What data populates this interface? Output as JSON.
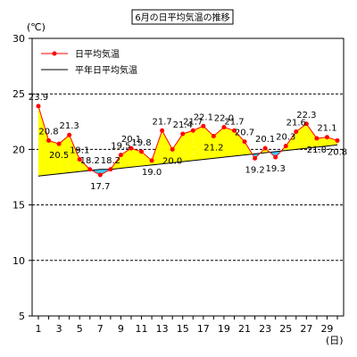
{
  "chart_data": {
    "type": "line",
    "title": "6月の日平均気温の推移",
    "ylabel": "(℃)",
    "xlabel": "(日)",
    "ylim": [
      5,
      30
    ],
    "yticks": [
      5,
      10,
      15,
      20,
      25,
      30
    ],
    "xlim": [
      1,
      30
    ],
    "xticks": [
      1,
      3,
      5,
      7,
      9,
      11,
      13,
      15,
      17,
      19,
      21,
      23,
      25,
      27,
      29
    ],
    "grid": "horizontal dashed",
    "legend_position": "top-left",
    "x": [
      1,
      2,
      3,
      4,
      5,
      6,
      7,
      8,
      9,
      10,
      11,
      12,
      13,
      14,
      15,
      16,
      17,
      18,
      19,
      20,
      21,
      22,
      23,
      24,
      25,
      26,
      27,
      28,
      29,
      30
    ],
    "series": [
      {
        "name": "日平均気温",
        "color": "#ff0000",
        "values": [
          23.9,
          20.8,
          20.5,
          21.3,
          19.1,
          18.2,
          17.7,
          18.2,
          19.5,
          20.1,
          19.8,
          19.0,
          21.7,
          20.0,
          21.4,
          21.7,
          22.1,
          21.2,
          22.0,
          21.7,
          20.7,
          19.2,
          20.1,
          19.3,
          20.3,
          21.6,
          22.3,
          21.0,
          21.1,
          20.8
        ]
      },
      {
        "name": "平年日平均気温",
        "color": "#000000",
        "values": [
          17.6,
          17.7,
          17.8,
          17.9,
          18.0,
          18.1,
          18.2,
          18.2,
          18.3,
          18.4,
          18.5,
          18.6,
          18.7,
          18.8,
          18.9,
          19.0,
          19.1,
          19.2,
          19.3,
          19.4,
          19.5,
          19.6,
          19.7,
          19.8,
          19.9,
          20.0,
          20.1,
          20.2,
          20.3,
          20.4
        ]
      }
    ],
    "data_labels": [
      "23.9",
      "20.8",
      "20.5",
      "21.3",
      "19.1",
      "18.2",
      "17.7",
      "18.2",
      "19.5",
      "20.1",
      "19.8",
      "19.0",
      "21.7",
      "20.0",
      "21.4",
      "21.7",
      "22.1",
      "21.2",
      "22.0",
      "21.7",
      "20.7",
      "19.2",
      "20.1",
      "19.3",
      "20.3",
      "21.6",
      "22.3",
      "21.0",
      "21.1",
      "20.8"
    ],
    "fill_above_color": "#ffff00",
    "fill_below_color": "#33ccff"
  }
}
